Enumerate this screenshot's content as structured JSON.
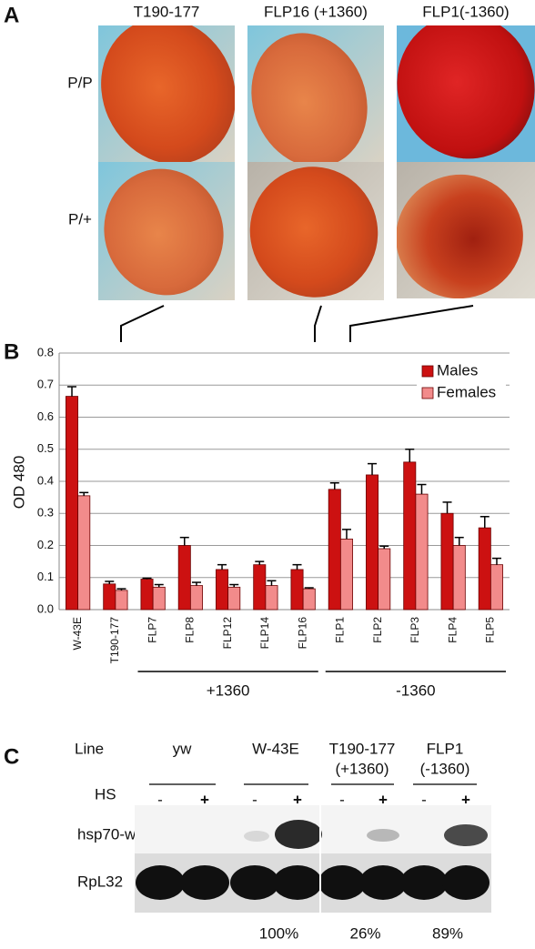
{
  "panel_a": {
    "label": "A",
    "columns": [
      "T190-177",
      "FLP16 (+1360)",
      "FLP1(-1360)"
    ],
    "rows": [
      "P/P",
      "P/+"
    ]
  },
  "chart_data": {
    "label": "B",
    "type": "bar",
    "y_label": "OD 480",
    "categories": [
      "W-43E",
      "T190-177",
      "FLP7",
      "FLP8",
      "FLP12",
      "FLP14",
      "FLP16",
      "FLP1",
      "FLP2",
      "FLP3",
      "FLP4",
      "FLP5"
    ],
    "series": [
      {
        "name": "Males",
        "color": "#cc1111",
        "values": [
          0.665,
          0.08,
          0.095,
          0.2,
          0.125,
          0.14,
          0.125,
          0.375,
          0.42,
          0.46,
          0.3,
          0.255
        ],
        "errors": [
          0.03,
          0.008,
          0.003,
          0.025,
          0.015,
          0.01,
          0.015,
          0.02,
          0.035,
          0.04,
          0.035,
          0.035
        ]
      },
      {
        "name": "Females",
        "color": "#f28b8b",
        "values": [
          0.355,
          0.06,
          0.07,
          0.075,
          0.07,
          0.075,
          0.065,
          0.22,
          0.19,
          0.36,
          0.2,
          0.14
        ],
        "errors": [
          0.01,
          0.005,
          0.008,
          0.01,
          0.008,
          0.015,
          0.003,
          0.03,
          0.008,
          0.03,
          0.025,
          0.02
        ]
      }
    ],
    "ylim": [
      0,
      0.8
    ],
    "yticks": [
      {
        "value": 0,
        "label": "0.0"
      },
      0.1,
      0.2,
      0.3,
      0.4,
      0.5,
      0.6,
      0.7,
      0.8
    ],
    "grid": true,
    "legend": "upper right",
    "groups": [
      {
        "label": "+1360",
        "from": "FLP7",
        "to": "FLP16"
      },
      {
        "label": "-1360",
        "from": "FLP1",
        "to": "FLP5"
      }
    ]
  },
  "panel_c": {
    "label": "C",
    "line_header": "Line",
    "hs_header": "HS",
    "hs": [
      "-",
      "+"
    ],
    "lines": [
      {
        "name": "yw"
      },
      {
        "name": "W-43E",
        "percent": "100%"
      },
      {
        "name": "T190-177",
        "note": "(+1360)",
        "percent": "26%"
      },
      {
        "name": "FLP1",
        "note": "(-1360)",
        "percent": "89%"
      }
    ],
    "rows": [
      "hsp70-w",
      "RpL32"
    ]
  }
}
